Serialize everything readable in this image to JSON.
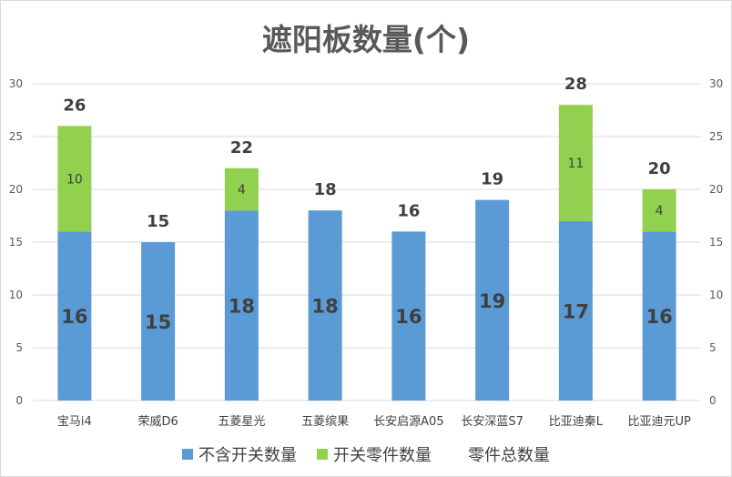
{
  "chart_data": {
    "type": "bar",
    "stacked": true,
    "title": "遮阳板数量(个)",
    "categories": [
      "宝马i4",
      "荣威D6",
      "五菱星光",
      "五菱缤果",
      "长安启源A05",
      "长安深蓝S7",
      "比亚迪秦L",
      "比亚迪元UP"
    ],
    "series": [
      {
        "name": "不含开关数量",
        "color": "#5B9BD5",
        "values": [
          16,
          15,
          18,
          18,
          16,
          19,
          17,
          16
        ]
      },
      {
        "name": "开关零件数量",
        "color": "#92D050",
        "values": [
          10,
          0,
          4,
          0,
          0,
          0,
          11,
          4
        ]
      },
      {
        "name": "零件总数量",
        "color": "#ffffff",
        "values": [
          26,
          15,
          22,
          18,
          16,
          19,
          28,
          20
        ]
      }
    ],
    "ylim": [
      0,
      30
    ],
    "yticks": [
      0,
      5,
      10,
      15,
      20,
      25,
      30
    ],
    "secondary_axis_ticks": [
      0,
      5,
      10,
      15,
      20,
      25,
      30
    ],
    "grid": true,
    "legend_position": "bottom"
  }
}
